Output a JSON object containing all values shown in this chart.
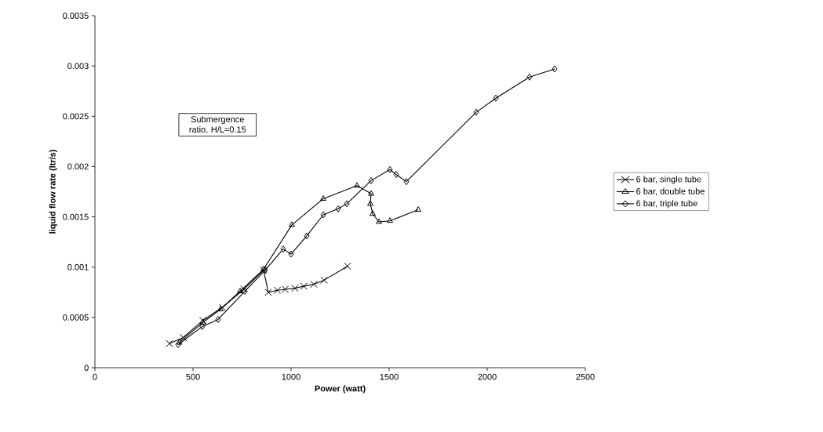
{
  "chart_data": {
    "type": "line",
    "xlabel": "Power (watt)",
    "ylabel": "liquid flow rate (ltr/s)",
    "annotations": [
      "Submergence ratio, H/L=0.15"
    ],
    "series": [
      {
        "name": "6 bar, single tube",
        "color": "#000000",
        "marker": "cross",
        "x": [
          380,
          450,
          550,
          650,
          760,
          860,
          884,
          930,
          970,
          1020,
          1065,
          1116,
          1168,
          1288
        ],
        "values": [
          0.00024,
          0.0003,
          0.00047,
          0.0006,
          0.00078,
          0.00097,
          0.00075,
          0.00077,
          0.00078,
          0.00079,
          0.00081,
          0.00083,
          0.00087,
          0.00101
        ]
      },
      {
        "name": "6 bar, double tube",
        "color": "#000000",
        "marker": "triangle",
        "x": [
          430,
          550,
          640,
          740,
          860,
          1004,
          1164,
          1336,
          1408,
          1404,
          1416,
          1448,
          1504,
          1648
        ],
        "values": [
          0.00025,
          0.00045,
          0.00058,
          0.00076,
          0.00098,
          0.00142,
          0.00168,
          0.00181,
          0.00173,
          0.00163,
          0.00153,
          0.00145,
          0.00146,
          0.00157
        ]
      },
      {
        "name": "6 bar, triple tube",
        "color": "#000000",
        "marker": "diamond",
        "x": [
          424,
          548,
          628,
          764,
          868,
          960,
          1000,
          1080,
          1164,
          1240,
          1284,
          1408,
          1504,
          1536,
          1588,
          1944,
          2044,
          2216,
          2344
        ],
        "values": [
          0.00023,
          0.00041,
          0.00048,
          0.00076,
          0.00097,
          0.00118,
          0.00113,
          0.00131,
          0.00152,
          0.00158,
          0.00163,
          0.00186,
          0.00197,
          0.00192,
          0.00185,
          0.00254,
          0.00268,
          0.00289,
          0.00297
        ]
      }
    ],
    "xlim": [
      0,
      2500
    ],
    "xticks": [
      0,
      500,
      1000,
      1500,
      2000,
      2500
    ],
    "ylim": [
      0,
      0.0035
    ],
    "yticks": [
      0,
      0.0005,
      0.001,
      0.0015,
      0.002,
      0.0025,
      0.003,
      0.0035
    ],
    "grid": false,
    "legend": "right",
    "line_style": "solid"
  }
}
